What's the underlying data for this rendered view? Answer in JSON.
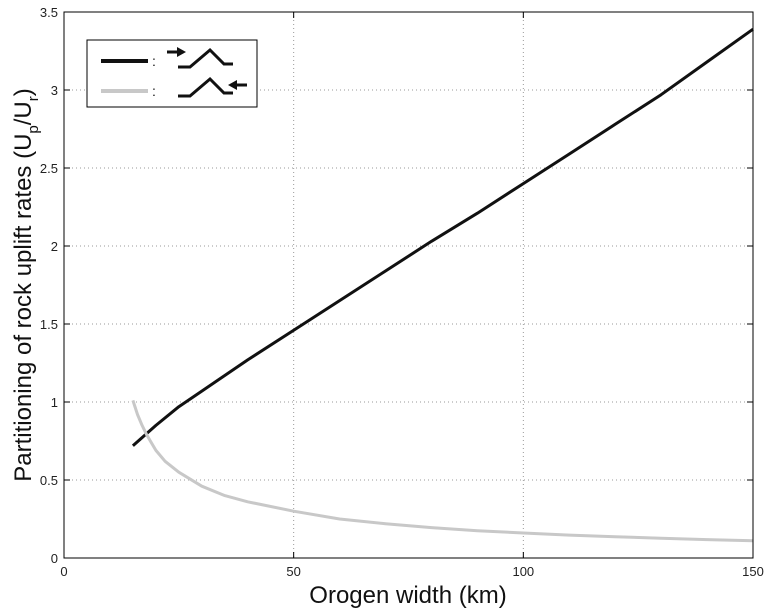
{
  "chart_data": {
    "type": "line",
    "title": "",
    "xlabel": "Orogen width (km)",
    "ylabel_main": "Partitioning of rock uplift rates (U",
    "ylabel_sub1": "p",
    "ylabel_mid": "/U",
    "ylabel_sub2": "r",
    "ylabel_end": ")",
    "xlim": [
      0,
      150
    ],
    "ylim": [
      0,
      3.5
    ],
    "xticks": [
      0,
      50,
      100,
      150
    ],
    "yticks": [
      0,
      0.5,
      1,
      1.5,
      2,
      2.5,
      3,
      3.5
    ],
    "grid": true,
    "legend_position": "top-left",
    "legend_separator": ":",
    "series": [
      {
        "color": "#111111",
        "legend_icon": "arrow-right-into-prowedge-icon",
        "x": [
          15,
          20,
          25,
          30,
          40,
          50,
          60,
          70,
          80,
          90,
          100,
          110,
          120,
          130,
          140,
          150
        ],
        "y": [
          0.72,
          0.85,
          0.97,
          1.07,
          1.27,
          1.46,
          1.65,
          1.84,
          2.03,
          2.21,
          2.4,
          2.59,
          2.78,
          2.97,
          3.18,
          3.39
        ]
      },
      {
        "color": "#c8c8c8",
        "legend_icon": "arrow-left-into-retrowedge-icon",
        "x": [
          15,
          16,
          17,
          18,
          19,
          20,
          22,
          25,
          30,
          35,
          40,
          50,
          60,
          70,
          80,
          90,
          100,
          110,
          120,
          130,
          140,
          150
        ],
        "y": [
          1.01,
          0.92,
          0.85,
          0.79,
          0.74,
          0.69,
          0.62,
          0.55,
          0.46,
          0.4,
          0.36,
          0.3,
          0.25,
          0.22,
          0.195,
          0.175,
          0.16,
          0.147,
          0.136,
          0.127,
          0.118,
          0.11
        ]
      }
    ]
  }
}
